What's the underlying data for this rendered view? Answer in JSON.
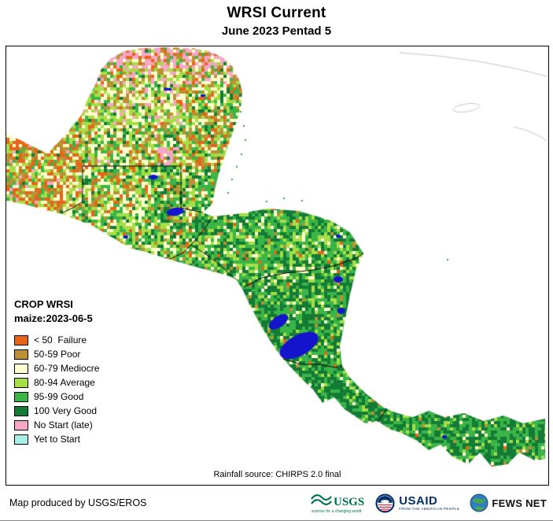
{
  "title": "WRSI Current",
  "subtitle": "June 2023 Pentad 5",
  "map": {
    "rainfall_source": "Rainfall source: CHIRPS 2.0 final"
  },
  "legend": {
    "title": "CROP WRSI",
    "subtitle": "maize:2023-06-5",
    "items": [
      {
        "label": "< 50  Failure",
        "color": "#E96318"
      },
      {
        "label": "50-59 Poor",
        "color": "#BA9134"
      },
      {
        "label": "60-79 Mediocre",
        "color": "#FFFFCE"
      },
      {
        "label": "80-94 Average",
        "color": "#A5DF45"
      },
      {
        "label": "95-99 Good",
        "color": "#3CB548"
      },
      {
        "label": "100 Very Good",
        "color": "#147B36"
      },
      {
        "label": "No Start (late)",
        "color": "#F6A7C8"
      },
      {
        "label": "Yet to Start",
        "color": "#A8EEE6"
      }
    ]
  },
  "footer": {
    "credit": "Map produced by USGS/EROS",
    "logos": {
      "usgs": {
        "text": "USGS",
        "tagline": "science for a changing world",
        "color": "#007150"
      },
      "usaid": {
        "text": "USAID",
        "tagline": "FROM THE AMERICAN PEOPLE",
        "color": "#002F6C"
      },
      "fewsnet": {
        "text": "FEWS NET"
      }
    }
  },
  "colors": {
    "water": "#1414CD",
    "country_border": "#000000",
    "ocean_coastline": "#C8C8C8",
    "ocean": "#FFFFFF"
  }
}
